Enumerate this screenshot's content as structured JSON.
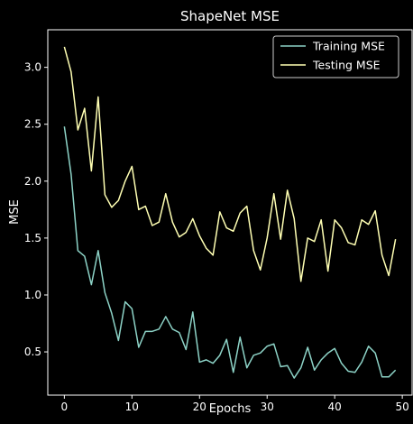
{
  "chart_data": {
    "type": "line",
    "title": "ShapeNet MSE",
    "xlabel": "Epochs",
    "ylabel": "MSE",
    "xlim": [
      -2.45,
      51.45
    ],
    "ylim": [
      0.12,
      3.33
    ],
    "xticks": [
      0,
      10,
      20,
      30,
      40,
      50
    ],
    "xtick_labels": [
      "0",
      "10",
      "20",
      "30",
      "40",
      "50"
    ],
    "yticks": [
      0.5,
      1.0,
      1.5,
      2.0,
      2.5,
      3.0
    ],
    "ytick_labels": [
      "0.5",
      "1.0",
      "1.5",
      "2.0",
      "2.5",
      "3.0"
    ],
    "grid": false,
    "legend_position": "top-right",
    "x": [
      0,
      1,
      2,
      3,
      4,
      5,
      6,
      7,
      8,
      9,
      10,
      11,
      12,
      13,
      14,
      15,
      16,
      17,
      18,
      19,
      20,
      21,
      22,
      23,
      24,
      25,
      26,
      27,
      28,
      29,
      30,
      31,
      32,
      33,
      34,
      35,
      36,
      37,
      38,
      39,
      40,
      41,
      42,
      43,
      44,
      45,
      46,
      47,
      48,
      49
    ],
    "series": [
      {
        "name": "Training MSE",
        "color": "#8dd3c7",
        "values": [
          2.48,
          2.06,
          1.39,
          1.34,
          1.09,
          1.39,
          1.02,
          0.84,
          0.6,
          0.94,
          0.88,
          0.54,
          0.68,
          0.68,
          0.7,
          0.81,
          0.7,
          0.67,
          0.52,
          0.85,
          0.41,
          0.43,
          0.4,
          0.47,
          0.61,
          0.32,
          0.63,
          0.36,
          0.47,
          0.49,
          0.55,
          0.57,
          0.37,
          0.38,
          0.27,
          0.36,
          0.54,
          0.34,
          0.43,
          0.49,
          0.53,
          0.4,
          0.33,
          0.32,
          0.41,
          0.55,
          0.49,
          0.28,
          0.28,
          0.34
        ]
      },
      {
        "name": "Testing MSE",
        "color": "#ffffb3",
        "values": [
          3.18,
          2.96,
          2.45,
          2.64,
          2.09,
          2.74,
          1.88,
          1.77,
          1.83,
          2.0,
          2.13,
          1.75,
          1.78,
          1.61,
          1.64,
          1.89,
          1.64,
          1.51,
          1.55,
          1.67,
          1.52,
          1.41,
          1.35,
          1.73,
          1.59,
          1.56,
          1.72,
          1.78,
          1.39,
          1.22,
          1.5,
          1.89,
          1.49,
          1.92,
          1.67,
          1.12,
          1.5,
          1.47,
          1.66,
          1.21,
          1.66,
          1.59,
          1.46,
          1.44,
          1.66,
          1.62,
          1.74,
          1.35,
          1.17,
          1.49
        ]
      }
    ]
  }
}
